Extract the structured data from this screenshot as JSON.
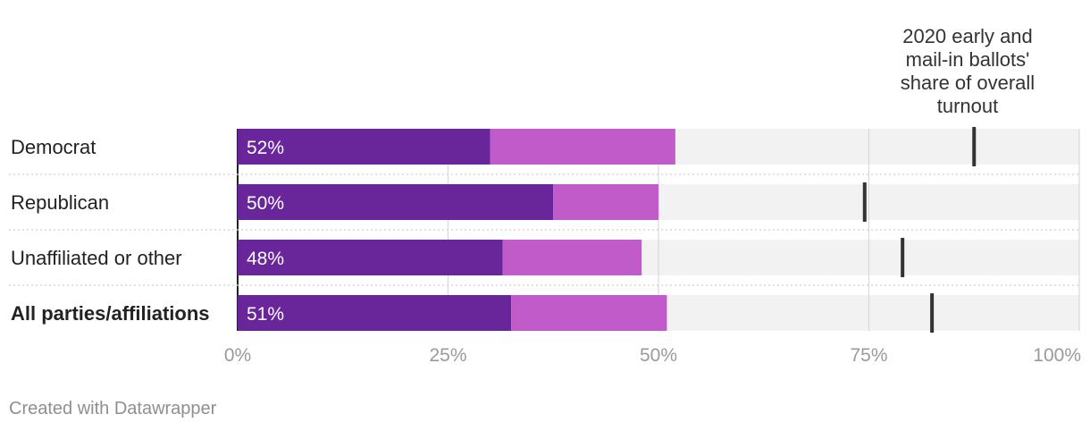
{
  "chart_data": {
    "type": "bar",
    "stacked": true,
    "categories": [
      "Democrat",
      "Republican",
      "Unaffiliated or other",
      "All parties/affiliations"
    ],
    "bold_categories": [
      "All parties/affiliations"
    ],
    "series": [
      {
        "values": [
          30,
          37.5,
          31.5,
          32.5
        ],
        "color": "#68269a"
      },
      {
        "values": [
          22,
          12.5,
          16.5,
          18.5
        ],
        "color": "#c05bc9"
      }
    ],
    "total_labels": [
      "52%",
      "50%",
      "48%",
      "51%"
    ],
    "markers": {
      "label": "2020 early and mail-in ballots' share of overall turnout",
      "values": [
        87.5,
        74.5,
        79,
        82.5
      ],
      "color": "#333333"
    },
    "xlim": [
      0,
      100
    ],
    "xticks": [
      0,
      25,
      50,
      75,
      100
    ],
    "xtick_labels": [
      "0%",
      "25%",
      "50%",
      "75%",
      "100%"
    ],
    "background_bar_color": "#f2f2f2",
    "grid": true,
    "title": "",
    "xlabel": "",
    "ylabel": ""
  },
  "footer": {
    "credit": "Created with Datawrapper"
  }
}
